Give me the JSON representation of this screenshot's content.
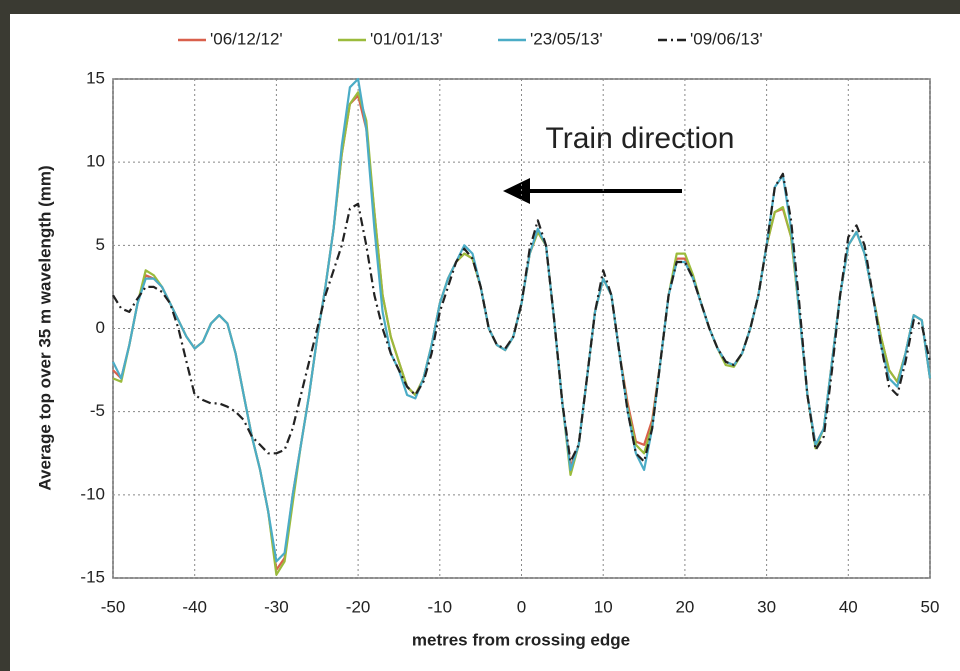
{
  "chart_data": {
    "type": "line",
    "xlabel": "metres from crossing edge",
    "ylabel": "Average top over 35 m wavelength (mm)",
    "annotation": "Train direction",
    "x": [
      -50,
      -49,
      -48,
      -47,
      -46,
      -45,
      -44,
      -43,
      -42,
      -41,
      -40,
      -39,
      -38,
      -37,
      -36,
      -35,
      -34,
      -33,
      -32,
      -31,
      -30,
      -29,
      -28,
      -27,
      -26,
      -25,
      -24,
      -23,
      -22,
      -21,
      -20,
      -19,
      -18,
      -17,
      -16,
      -15,
      -14,
      -13,
      -12,
      -11,
      -10,
      -9,
      -8,
      -7,
      -6,
      -5,
      -4,
      -3,
      -2,
      -1,
      0,
      1,
      2,
      3,
      4,
      5,
      6,
      7,
      8,
      9,
      10,
      11,
      12,
      13,
      14,
      15,
      16,
      17,
      18,
      19,
      20,
      21,
      22,
      23,
      24,
      25,
      26,
      27,
      28,
      29,
      30,
      31,
      32,
      33,
      34,
      35,
      36,
      37,
      38,
      39,
      40,
      41,
      42,
      43,
      44,
      45,
      46,
      47,
      48,
      49,
      50
    ],
    "series": [
      {
        "name": "'06/12/12'",
        "color": "#d9604c",
        "style": "solid",
        "values": [
          -2.5,
          -3,
          -1,
          1.5,
          3.2,
          3,
          2.5,
          1.5,
          0.5,
          -0.5,
          -1.2,
          -0.8,
          0.3,
          0.8,
          0.3,
          -1.5,
          -4,
          -6.5,
          -8.5,
          -11,
          -14.5,
          -13.8,
          -10,
          -7,
          -4,
          -0.5,
          2.5,
          6,
          10.5,
          13.5,
          14,
          12,
          7,
          2,
          -0.5,
          -2,
          -3.5,
          -4,
          -3,
          -1,
          1.5,
          3,
          4,
          4.5,
          4.2,
          2.5,
          0,
          -1,
          -1.3,
          -0.5,
          1.5,
          4.5,
          5.8,
          5,
          0.5,
          -4.5,
          -8.3,
          -7,
          -3,
          1,
          3,
          2,
          -1.5,
          -4.5,
          -6.8,
          -7,
          -5.5,
          -2,
          2,
          4.2,
          4.2,
          3,
          1.5,
          0,
          -1.2,
          -2,
          -2.2,
          -1.5,
          0,
          2,
          5,
          7,
          7.2,
          5.5,
          1,
          -4,
          -7,
          -6,
          -2,
          2,
          5,
          5.8,
          4.5,
          2,
          -0.5,
          -2.5,
          -3.2,
          -1.5,
          0.8,
          0.5,
          -3
        ]
      },
      {
        "name": "'01/01/13'",
        "color": "#9bbb3c",
        "style": "solid",
        "values": [
          -3,
          -3.2,
          -1,
          1.5,
          3.5,
          3.2,
          2.5,
          1.5,
          0.5,
          -0.5,
          -1.2,
          -0.8,
          0.3,
          0.8,
          0.3,
          -1.5,
          -4,
          -6.5,
          -8.5,
          -11,
          -14.8,
          -14,
          -10.5,
          -7,
          -4,
          -0.5,
          2.5,
          6,
          10.5,
          13.5,
          14.2,
          12.5,
          7,
          2,
          -0.5,
          -2,
          -3.5,
          -4,
          -3,
          -1,
          1.5,
          3,
          4,
          4.5,
          4.2,
          2.5,
          0,
          -1,
          -1.3,
          -0.5,
          1.5,
          4.5,
          5.8,
          5,
          0.5,
          -4.5,
          -8.8,
          -7,
          -3,
          1,
          3,
          2,
          -1.5,
          -4.8,
          -7,
          -7.5,
          -5.8,
          -2,
          2,
          4.5,
          4.5,
          3.2,
          1.5,
          0,
          -1.2,
          -2.2,
          -2.3,
          -1.5,
          0,
          2,
          5,
          7,
          7.3,
          5.5,
          1,
          -4,
          -7.2,
          -6,
          -2,
          2,
          5,
          5.8,
          4.5,
          2,
          -0.5,
          -2.5,
          -3.2,
          -1.5,
          0.8,
          0.5,
          -3
        ]
      },
      {
        "name": "'23/05/13'",
        "color": "#4bacc6",
        "style": "solid",
        "values": [
          -2,
          -3,
          -1,
          1.5,
          3,
          3,
          2.5,
          1.5,
          0.5,
          -0.5,
          -1.2,
          -0.8,
          0.3,
          0.8,
          0.3,
          -1.5,
          -4,
          -6.5,
          -8.5,
          -11,
          -14,
          -13.5,
          -10,
          -7,
          -4,
          -0.5,
          2.5,
          6,
          11,
          14.5,
          15,
          12,
          6,
          1,
          -1.5,
          -2.5,
          -4,
          -4.2,
          -3,
          -1,
          1.5,
          3,
          4,
          5,
          4.5,
          2.5,
          0,
          -1,
          -1.3,
          -0.5,
          1.5,
          4.5,
          6,
          5,
          0.5,
          -4.5,
          -8.5,
          -7,
          -3,
          1,
          3,
          2,
          -1.5,
          -5,
          -7.5,
          -8.5,
          -6,
          -2,
          2,
          4,
          4,
          3,
          1.5,
          0,
          -1.2,
          -2,
          -2.2,
          -1.5,
          0,
          2,
          5,
          8.5,
          9.2,
          6,
          1,
          -4,
          -7,
          -6,
          -2,
          2,
          5,
          5.8,
          4.5,
          2,
          -1,
          -3,
          -3.5,
          -1.5,
          0.8,
          0.5,
          -3
        ]
      },
      {
        "name": "'09/06/13'",
        "color": "#222222",
        "style": "dashdot",
        "values": [
          2,
          1.2,
          1,
          1.8,
          2.5,
          2.5,
          2.2,
          1.5,
          0,
          -2,
          -4,
          -4.3,
          -4.5,
          -4.5,
          -4.7,
          -5,
          -5.5,
          -6.5,
          -7,
          -7.5,
          -7.5,
          -7.3,
          -6,
          -4,
          -2,
          0,
          2,
          3.5,
          5,
          7.2,
          7.5,
          5,
          2,
          0,
          -1.5,
          -2.5,
          -3.5,
          -4,
          -3.2,
          -1.5,
          1,
          2.5,
          4,
          4.8,
          4.2,
          2.5,
          0,
          -1,
          -1.2,
          -0.5,
          1.5,
          4.8,
          6.5,
          5,
          0.5,
          -4.5,
          -8,
          -7,
          -3,
          1,
          3.5,
          2,
          -1.5,
          -5,
          -7.5,
          -8,
          -6,
          -2,
          2,
          4,
          4,
          3,
          1.5,
          0,
          -1.2,
          -2,
          -2.2,
          -1.5,
          0,
          2,
          5,
          8.5,
          9.3,
          6.5,
          1.5,
          -4,
          -7.3,
          -6.5,
          -2.5,
          2,
          5.5,
          6.2,
          5,
          2,
          -1,
          -3.5,
          -4,
          -2,
          0.5,
          0.2,
          -2
        ]
      }
    ],
    "xlim": [
      -50,
      50
    ],
    "xticks": [
      -50,
      -40,
      -30,
      -20,
      -10,
      0,
      10,
      20,
      30,
      40,
      50
    ],
    "ylim": [
      -15,
      15
    ],
    "yticks": [
      -15,
      -10,
      -5,
      0,
      5,
      10,
      15
    ],
    "grid": true,
    "legend": "top"
  }
}
